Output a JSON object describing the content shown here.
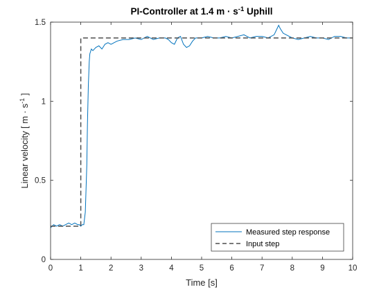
{
  "chart_data": {
    "type": "line",
    "title_main": "PI-Controller at 1.4 m · s",
    "title_sup": "-1",
    "title_tail": " Uphill",
    "xlabel": "Time [s]",
    "ylabel_main": "Linear velocity [ m · s",
    "ylabel_sup": "-1",
    "ylabel_tail": " ]",
    "xlim": [
      0,
      10
    ],
    "ylim": [
      0,
      1.5
    ],
    "xticks": [
      0,
      1,
      2,
      3,
      4,
      5,
      6,
      7,
      8,
      9,
      10
    ],
    "yticks": [
      0,
      0.5,
      1,
      1.5
    ],
    "ytick_labels": [
      "0",
      "0.5",
      "1",
      "1.5"
    ],
    "grid": false,
    "legend_position": "bottom-right",
    "series": [
      {
        "name": "Measured step response",
        "color": "#0072BD",
        "style": "solid",
        "x": [
          0,
          0.05,
          0.1,
          0.2,
          0.3,
          0.4,
          0.5,
          0.6,
          0.7,
          0.8,
          0.9,
          0.95,
          1.0,
          1.05,
          1.1,
          1.15,
          1.2,
          1.22,
          1.25,
          1.28,
          1.3,
          1.35,
          1.4,
          1.5,
          1.6,
          1.7,
          1.8,
          1.9,
          2.0,
          2.2,
          2.4,
          2.6,
          2.8,
          3.0,
          3.2,
          3.4,
          3.6,
          3.8,
          3.9,
          4.0,
          4.1,
          4.2,
          4.3,
          4.4,
          4.5,
          4.6,
          4.7,
          4.8,
          5.0,
          5.2,
          5.4,
          5.6,
          5.8,
          6.0,
          6.2,
          6.4,
          6.6,
          6.8,
          7.0,
          7.2,
          7.4,
          7.5,
          7.55,
          7.6,
          7.7,
          7.8,
          8.0,
          8.2,
          8.4,
          8.6,
          8.8,
          9.0,
          9.2,
          9.4,
          9.6,
          9.8,
          10.0
        ],
        "y": [
          0.2,
          0.21,
          0.22,
          0.21,
          0.22,
          0.21,
          0.22,
          0.23,
          0.22,
          0.23,
          0.22,
          0.22,
          0.21,
          0.22,
          0.22,
          0.3,
          0.6,
          0.85,
          1.1,
          1.25,
          1.3,
          1.33,
          1.32,
          1.34,
          1.35,
          1.33,
          1.36,
          1.37,
          1.36,
          1.38,
          1.39,
          1.39,
          1.4,
          1.39,
          1.41,
          1.39,
          1.4,
          1.4,
          1.39,
          1.37,
          1.36,
          1.4,
          1.41,
          1.36,
          1.34,
          1.35,
          1.38,
          1.4,
          1.4,
          1.41,
          1.4,
          1.4,
          1.41,
          1.4,
          1.41,
          1.42,
          1.4,
          1.41,
          1.41,
          1.4,
          1.42,
          1.46,
          1.48,
          1.46,
          1.43,
          1.42,
          1.4,
          1.39,
          1.4,
          1.41,
          1.4,
          1.4,
          1.39,
          1.41,
          1.41,
          1.4,
          1.4
        ]
      },
      {
        "name": "Input step",
        "color": "#4D4D4D",
        "style": "dashed",
        "x": [
          0,
          1,
          1,
          10
        ],
        "y": [
          0.21,
          0.21,
          1.4,
          1.4
        ]
      }
    ]
  }
}
